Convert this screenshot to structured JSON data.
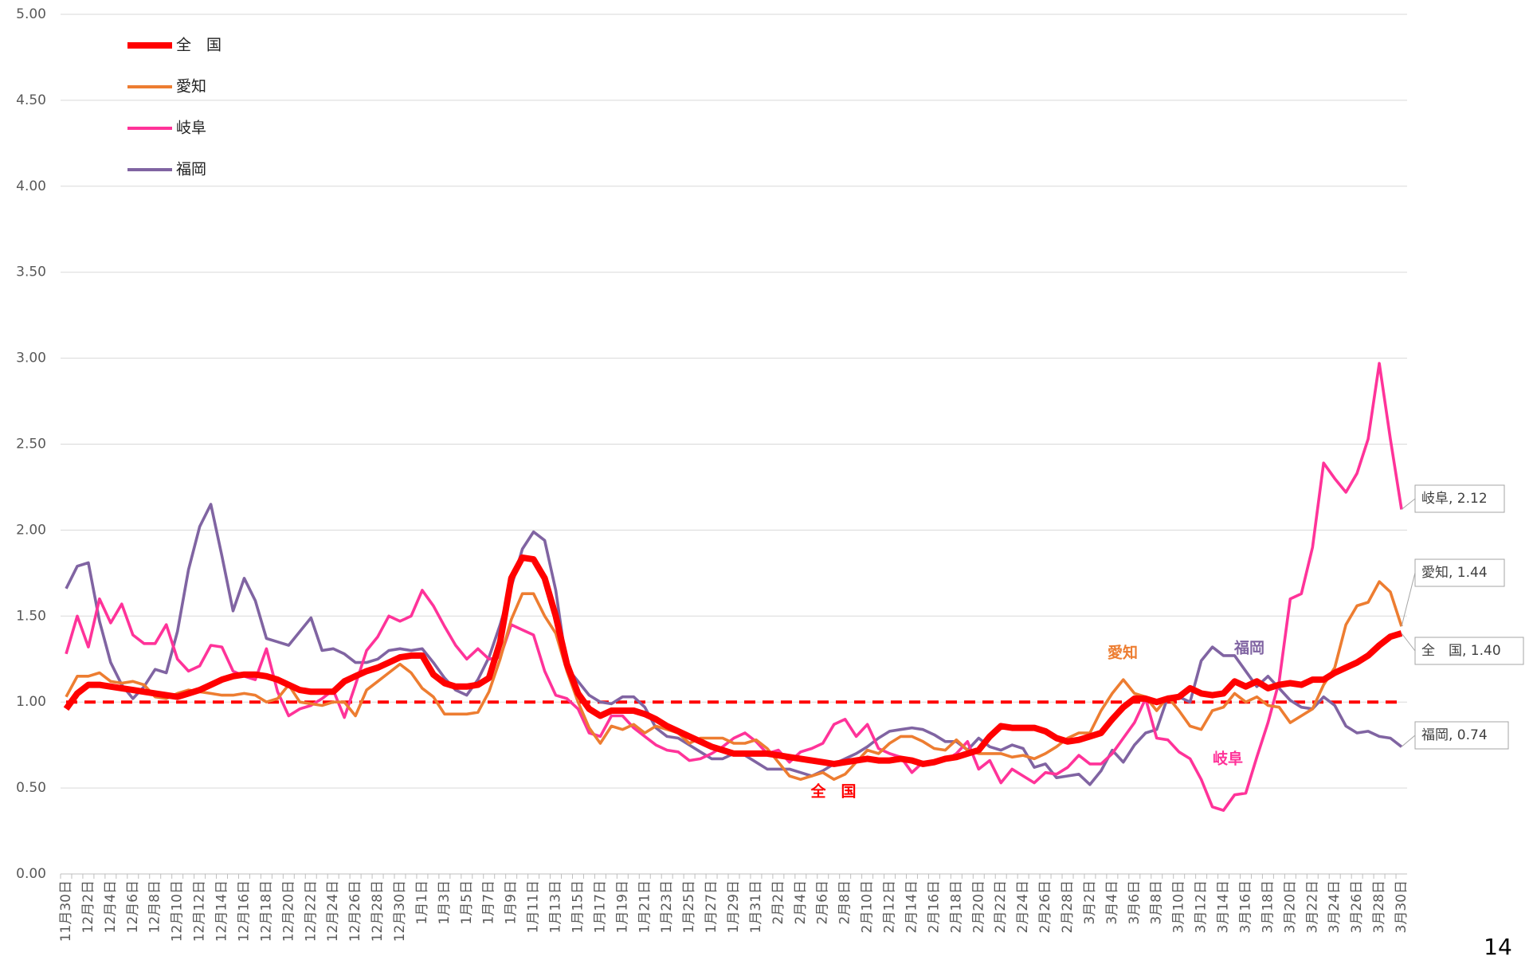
{
  "chart_data": {
    "type": "line",
    "categories": [
      "11月30日",
      null,
      "12月2日",
      null,
      "12月4日",
      null,
      "12月6日",
      null,
      "12月8日",
      null,
      "12月10日",
      null,
      "12月12日",
      null,
      "12月14日",
      null,
      "12月16日",
      null,
      "12月18日",
      null,
      "12月20日",
      null,
      "12月22日",
      null,
      "12月24日",
      null,
      "12月26日",
      null,
      "12月28日",
      null,
      "12月30日",
      null,
      "1月1日",
      null,
      "1月3日",
      null,
      "1月5日",
      null,
      "1月7日",
      null,
      "1月9日",
      null,
      "1月11日",
      null,
      "1月13日",
      null,
      "1月15日",
      null,
      "1月17日",
      null,
      "1月19日",
      null,
      "1月21日",
      null,
      "1月23日",
      null,
      "1月25日",
      null,
      "1月27日",
      null,
      "1月29日",
      null,
      "1月31日",
      null,
      "2月2日",
      null,
      "2月4日",
      null,
      "2月6日",
      null,
      "2月8日",
      null,
      "2月10日",
      null,
      "2月12日",
      null,
      "2月14日",
      null,
      "2月16日",
      null,
      "2月18日",
      null,
      "2月20日",
      null,
      "2月22日",
      null,
      "2月24日",
      null,
      "2月26日",
      null,
      "2月28日",
      null,
      "3月2日",
      null,
      "3月4日",
      null,
      "3月6日",
      null,
      "3月8日",
      null,
      "3月10日",
      null,
      "3月12日",
      null,
      "3月14日",
      null,
      "3月16日",
      null,
      "3月18日",
      null,
      "3月20日",
      null,
      "3月22日",
      null,
      "3月24日",
      null,
      "3月26日",
      null,
      "3月28日",
      null,
      "3月30日"
    ],
    "series": [
      {
        "name": "全　国",
        "color": "#ff0000",
        "values": [
          0.96,
          1.05,
          1.1,
          1.1,
          1.09,
          1.08,
          1.07,
          1.06,
          1.05,
          1.04,
          1.03,
          1.05,
          1.07,
          1.1,
          1.13,
          1.15,
          1.16,
          1.16,
          1.15,
          1.13,
          1.1,
          1.07,
          1.06,
          1.06,
          1.06,
          1.12,
          1.15,
          1.18,
          1.2,
          1.23,
          1.26,
          1.27,
          1.27,
          1.16,
          1.11,
          1.09,
          1.09,
          1.1,
          1.14,
          1.35,
          1.72,
          1.84,
          1.83,
          1.72,
          1.5,
          1.22,
          1.05,
          0.96,
          0.92,
          0.95,
          0.95,
          0.95,
          0.93,
          0.9,
          0.86,
          0.83,
          0.8,
          0.77,
          0.74,
          0.72,
          0.7,
          0.7,
          0.7,
          0.7,
          0.69,
          0.68,
          0.67,
          0.66,
          0.65,
          0.64,
          0.65,
          0.66,
          0.67,
          0.66,
          0.66,
          0.67,
          0.66,
          0.64,
          0.65,
          0.67,
          0.68,
          0.7,
          0.72,
          0.8,
          0.86,
          0.85,
          0.85,
          0.85,
          0.83,
          0.79,
          0.77,
          0.78,
          0.8,
          0.82,
          0.9,
          0.97,
          1.02,
          1.02,
          1.0,
          1.02,
          1.03,
          1.08,
          1.05,
          1.04,
          1.05,
          1.12,
          1.09,
          1.12,
          1.08,
          1.1,
          1.11,
          1.1,
          1.13,
          1.13,
          1.17,
          1.2,
          1.23,
          1.27,
          1.33,
          1.38,
          1.4
        ],
        "value_labels": [
          null,
          null,
          null,
          null,
          null,
          null,
          null,
          null,
          null,
          null,
          null,
          null,
          null,
          null,
          null,
          null,
          null,
          null,
          null,
          null,
          null,
          null,
          null,
          null,
          null,
          null,
          null,
          null,
          null,
          null,
          null,
          null,
          null,
          null,
          null,
          null,
          null,
          null,
          null,
          null,
          null,
          null,
          null,
          null,
          null,
          null,
          null,
          null,
          null,
          null,
          null,
          null,
          null,
          null,
          null,
          null,
          null,
          null,
          null,
          null,
          null,
          null,
          null,
          null,
          null,
          null,
          null,
          null,
          null,
          null,
          null,
          null,
          null,
          null,
          null,
          null,
          null,
          null,
          null,
          null,
          null,
          null,
          null,
          null,
          null,
          null,
          null,
          null,
          null,
          null,
          null,
          null,
          null,
          null,
          null,
          null,
          null,
          null,
          null,
          null,
          null,
          null,
          null,
          null,
          null,
          null,
          null,
          null,
          null,
          null,
          null,
          null,
          null,
          null,
          null,
          null,
          null,
          null,
          null,
          null,
          "全　国, 1.40"
        ]
      },
      {
        "name": "愛知",
        "color": "#ed7d31",
        "values": [
          1.03,
          1.15,
          1.15,
          1.17,
          1.12,
          1.11,
          1.12,
          1.1,
          1.03,
          1.02,
          1.05,
          1.07,
          1.06,
          1.05,
          1.04,
          1.04,
          1.05,
          1.04,
          1.0,
          1.02,
          1.1,
          1.0,
          0.99,
          0.98,
          1.0,
          1.0,
          0.92,
          1.07,
          1.12,
          1.17,
          1.22,
          1.17,
          1.08,
          1.03,
          0.93,
          0.93,
          0.93,
          0.94,
          1.06,
          1.25,
          1.48,
          1.63,
          1.63,
          1.5,
          1.4,
          1.18,
          1.0,
          0.85,
          0.76,
          0.86,
          0.84,
          0.87,
          0.82,
          0.86,
          0.84,
          0.82,
          0.76,
          0.79,
          0.79,
          0.79,
          0.76,
          0.76,
          0.78,
          0.73,
          0.65,
          0.57,
          0.55,
          0.57,
          0.59,
          0.55,
          0.58,
          0.65,
          0.72,
          0.7,
          0.76,
          0.8,
          0.8,
          0.77,
          0.73,
          0.72,
          0.78,
          0.72,
          0.7,
          0.7,
          0.7,
          0.68,
          0.69,
          0.67,
          0.7,
          0.74,
          0.79,
          0.82,
          0.82,
          0.95,
          1.05,
          1.13,
          1.05,
          1.03,
          0.95,
          1.03,
          0.95,
          0.86,
          0.84,
          0.95,
          0.97,
          1.05,
          1.0,
          1.03,
          0.98,
          0.97,
          0.88,
          0.92,
          0.96,
          1.1,
          1.2,
          1.45,
          1.56,
          1.58,
          1.7,
          1.64,
          1.44
        ],
        "value_labels": [
          null,
          null,
          null,
          null,
          null,
          null,
          null,
          null,
          null,
          null,
          null,
          null,
          null,
          null,
          null,
          null,
          null,
          null,
          null,
          null,
          null,
          null,
          null,
          null,
          null,
          null,
          null,
          null,
          null,
          null,
          null,
          null,
          null,
          null,
          null,
          null,
          null,
          null,
          null,
          null,
          null,
          null,
          null,
          null,
          null,
          null,
          null,
          null,
          null,
          null,
          null,
          null,
          null,
          null,
          null,
          null,
          null,
          null,
          null,
          null,
          null,
          null,
          null,
          null,
          null,
          null,
          null,
          null,
          null,
          null,
          null,
          null,
          null,
          null,
          null,
          null,
          null,
          null,
          null,
          null,
          null,
          null,
          null,
          null,
          null,
          null,
          null,
          null,
          null,
          null,
          null,
          null,
          null,
          null,
          null,
          null,
          null,
          null,
          null,
          null,
          null,
          null,
          null,
          null,
          null,
          null,
          null,
          null,
          null,
          null,
          null,
          null,
          null,
          null,
          null,
          null,
          null,
          null,
          null,
          null,
          "愛知, 1.44"
        ]
      },
      {
        "name": "岐阜",
        "color": "#ff3399",
        "values": [
          1.28,
          1.5,
          1.32,
          1.6,
          1.46,
          1.57,
          1.39,
          1.34,
          1.34,
          1.45,
          1.25,
          1.18,
          1.21,
          1.33,
          1.32,
          1.18,
          1.15,
          1.13,
          1.31,
          1.06,
          0.92,
          0.96,
          0.98,
          1.02,
          1.07,
          0.91,
          1.1,
          1.3,
          1.38,
          1.5,
          1.47,
          1.5,
          1.65,
          1.56,
          1.44,
          1.33,
          1.25,
          1.31,
          1.25,
          1.26,
          1.45,
          1.42,
          1.39,
          1.18,
          1.04,
          1.02,
          0.96,
          0.82,
          0.8,
          0.92,
          0.92,
          0.85,
          0.8,
          0.75,
          0.72,
          0.71,
          0.66,
          0.67,
          0.7,
          0.74,
          0.79,
          0.82,
          0.77,
          0.7,
          0.72,
          0.65,
          0.71,
          0.73,
          0.76,
          0.87,
          0.9,
          0.8,
          0.87,
          0.73,
          0.7,
          0.68,
          0.59,
          0.65,
          0.65,
          0.66,
          0.7,
          0.77,
          0.61,
          0.66,
          0.53,
          0.61,
          0.57,
          0.53,
          0.59,
          0.58,
          0.62,
          0.69,
          0.64,
          0.64,
          0.7,
          0.79,
          0.88,
          1.02,
          0.79,
          0.78,
          0.71,
          0.67,
          0.55,
          0.39,
          0.37,
          0.46,
          0.47,
          0.68,
          0.88,
          1.12,
          1.6,
          1.63,
          1.9,
          2.39,
          2.3,
          2.22,
          2.33,
          2.53,
          2.97,
          2.53,
          2.12
        ],
        "value_labels": [
          null,
          null,
          null,
          null,
          null,
          null,
          null,
          null,
          null,
          null,
          null,
          null,
          null,
          null,
          null,
          null,
          null,
          null,
          null,
          null,
          null,
          null,
          null,
          null,
          null,
          null,
          null,
          null,
          null,
          null,
          null,
          null,
          null,
          null,
          null,
          null,
          null,
          null,
          null,
          null,
          null,
          null,
          null,
          null,
          null,
          null,
          null,
          null,
          null,
          null,
          null,
          null,
          null,
          null,
          null,
          null,
          null,
          null,
          null,
          null,
          null,
          null,
          null,
          null,
          null,
          null,
          null,
          null,
          null,
          null,
          null,
          null,
          null,
          null,
          null,
          null,
          null,
          null,
          null,
          null,
          null,
          null,
          null,
          null,
          null,
          null,
          null,
          null,
          null,
          null,
          null,
          null,
          null,
          null,
          null,
          null,
          null,
          null,
          null,
          null,
          null,
          null,
          null,
          null,
          null,
          null,
          null,
          null,
          null,
          null,
          null,
          null,
          null,
          null,
          null,
          null,
          null,
          null,
          null,
          null,
          "岐阜, 2.12"
        ]
      },
      {
        "name": "福岡",
        "color": "#8064a2",
        "values": [
          1.66,
          1.79,
          1.81,
          1.47,
          1.23,
          1.1,
          1.02,
          1.09,
          1.19,
          1.17,
          1.41,
          1.77,
          2.02,
          2.15,
          1.85,
          1.53,
          1.72,
          1.59,
          1.37,
          1.35,
          1.33,
          1.41,
          1.49,
          1.3,
          1.31,
          1.28,
          1.23,
          1.23,
          1.25,
          1.3,
          1.31,
          1.3,
          1.31,
          1.23,
          1.14,
          1.07,
          1.04,
          1.13,
          1.26,
          1.45,
          1.67,
          1.89,
          1.99,
          1.94,
          1.65,
          1.2,
          1.12,
          1.04,
          1.0,
          0.99,
          1.03,
          1.03,
          0.97,
          0.85,
          0.8,
          0.79,
          0.75,
          0.71,
          0.67,
          0.67,
          0.7,
          0.69,
          0.65,
          0.61,
          0.61,
          0.61,
          0.59,
          0.57,
          0.6,
          0.64,
          0.67,
          0.7,
          0.74,
          0.79,
          0.83,
          0.84,
          0.85,
          0.84,
          0.81,
          0.77,
          0.77,
          0.72,
          0.79,
          0.74,
          0.72,
          0.75,
          0.73,
          0.62,
          0.64,
          0.56,
          0.57,
          0.58,
          0.52,
          0.6,
          0.72,
          0.65,
          0.75,
          0.82,
          0.84,
          1.03,
          1.03,
          1.0,
          1.24,
          1.32,
          1.27,
          1.27,
          1.18,
          1.09,
          1.15,
          1.08,
          1.01,
          0.97,
          0.96,
          1.03,
          0.98,
          0.86,
          0.82,
          0.83,
          0.8,
          0.79,
          0.74
        ],
        "value_labels": [
          null,
          null,
          null,
          null,
          null,
          null,
          null,
          null,
          null,
          null,
          null,
          null,
          null,
          null,
          null,
          null,
          null,
          null,
          null,
          null,
          null,
          null,
          null,
          null,
          null,
          null,
          null,
          null,
          null,
          null,
          null,
          null,
          null,
          null,
          null,
          null,
          null,
          null,
          null,
          null,
          null,
          null,
          null,
          null,
          null,
          null,
          null,
          null,
          null,
          null,
          null,
          null,
          null,
          null,
          null,
          null,
          null,
          null,
          null,
          null,
          null,
          null,
          null,
          null,
          null,
          null,
          null,
          null,
          null,
          null,
          null,
          null,
          null,
          null,
          null,
          null,
          null,
          null,
          null,
          null,
          null,
          null,
          null,
          null,
          null,
          null,
          null,
          null,
          null,
          null,
          null,
          null,
          null,
          null,
          null,
          null,
          null,
          null,
          null,
          null,
          null,
          null,
          null,
          null,
          null,
          null,
          null,
          null,
          null,
          null,
          null,
          null,
          null,
          null,
          null,
          null,
          null,
          null,
          null,
          null,
          "福岡, 0.74"
        ]
      }
    ],
    "reference_line": {
      "value": 1,
      "color": "#ff0000"
    },
    "annotations": [
      {
        "text": "全　国",
        "color": "#ff0000"
      },
      {
        "text": "愛知",
        "color": "#ed7d31"
      },
      {
        "text": "福岡",
        "color": "#8064a2"
      },
      {
        "text": "岐阜",
        "color": "#ff3399"
      }
    ],
    "ylim": [
      0,
      5
    ],
    "yticks": [
      {
        "value": 0,
        "label": "0.00"
      },
      {
        "value": 0.5,
        "label": "0.50"
      },
      {
        "value": 1,
        "label": "1.00"
      },
      {
        "value": 1.5,
        "label": "1.50"
      },
      {
        "value": 2,
        "label": "2.00"
      },
      {
        "value": 2.5,
        "label": "2.50"
      },
      {
        "value": 3,
        "label": "3.00"
      },
      {
        "value": 3.5,
        "label": "3.50"
      },
      {
        "value": 4,
        "label": "4.00"
      },
      {
        "value": 4.5,
        "label": "4.50"
      },
      {
        "value": 5,
        "label": "5.00"
      }
    ],
    "grid": true,
    "legend": "top-left"
  },
  "page_number": "14"
}
